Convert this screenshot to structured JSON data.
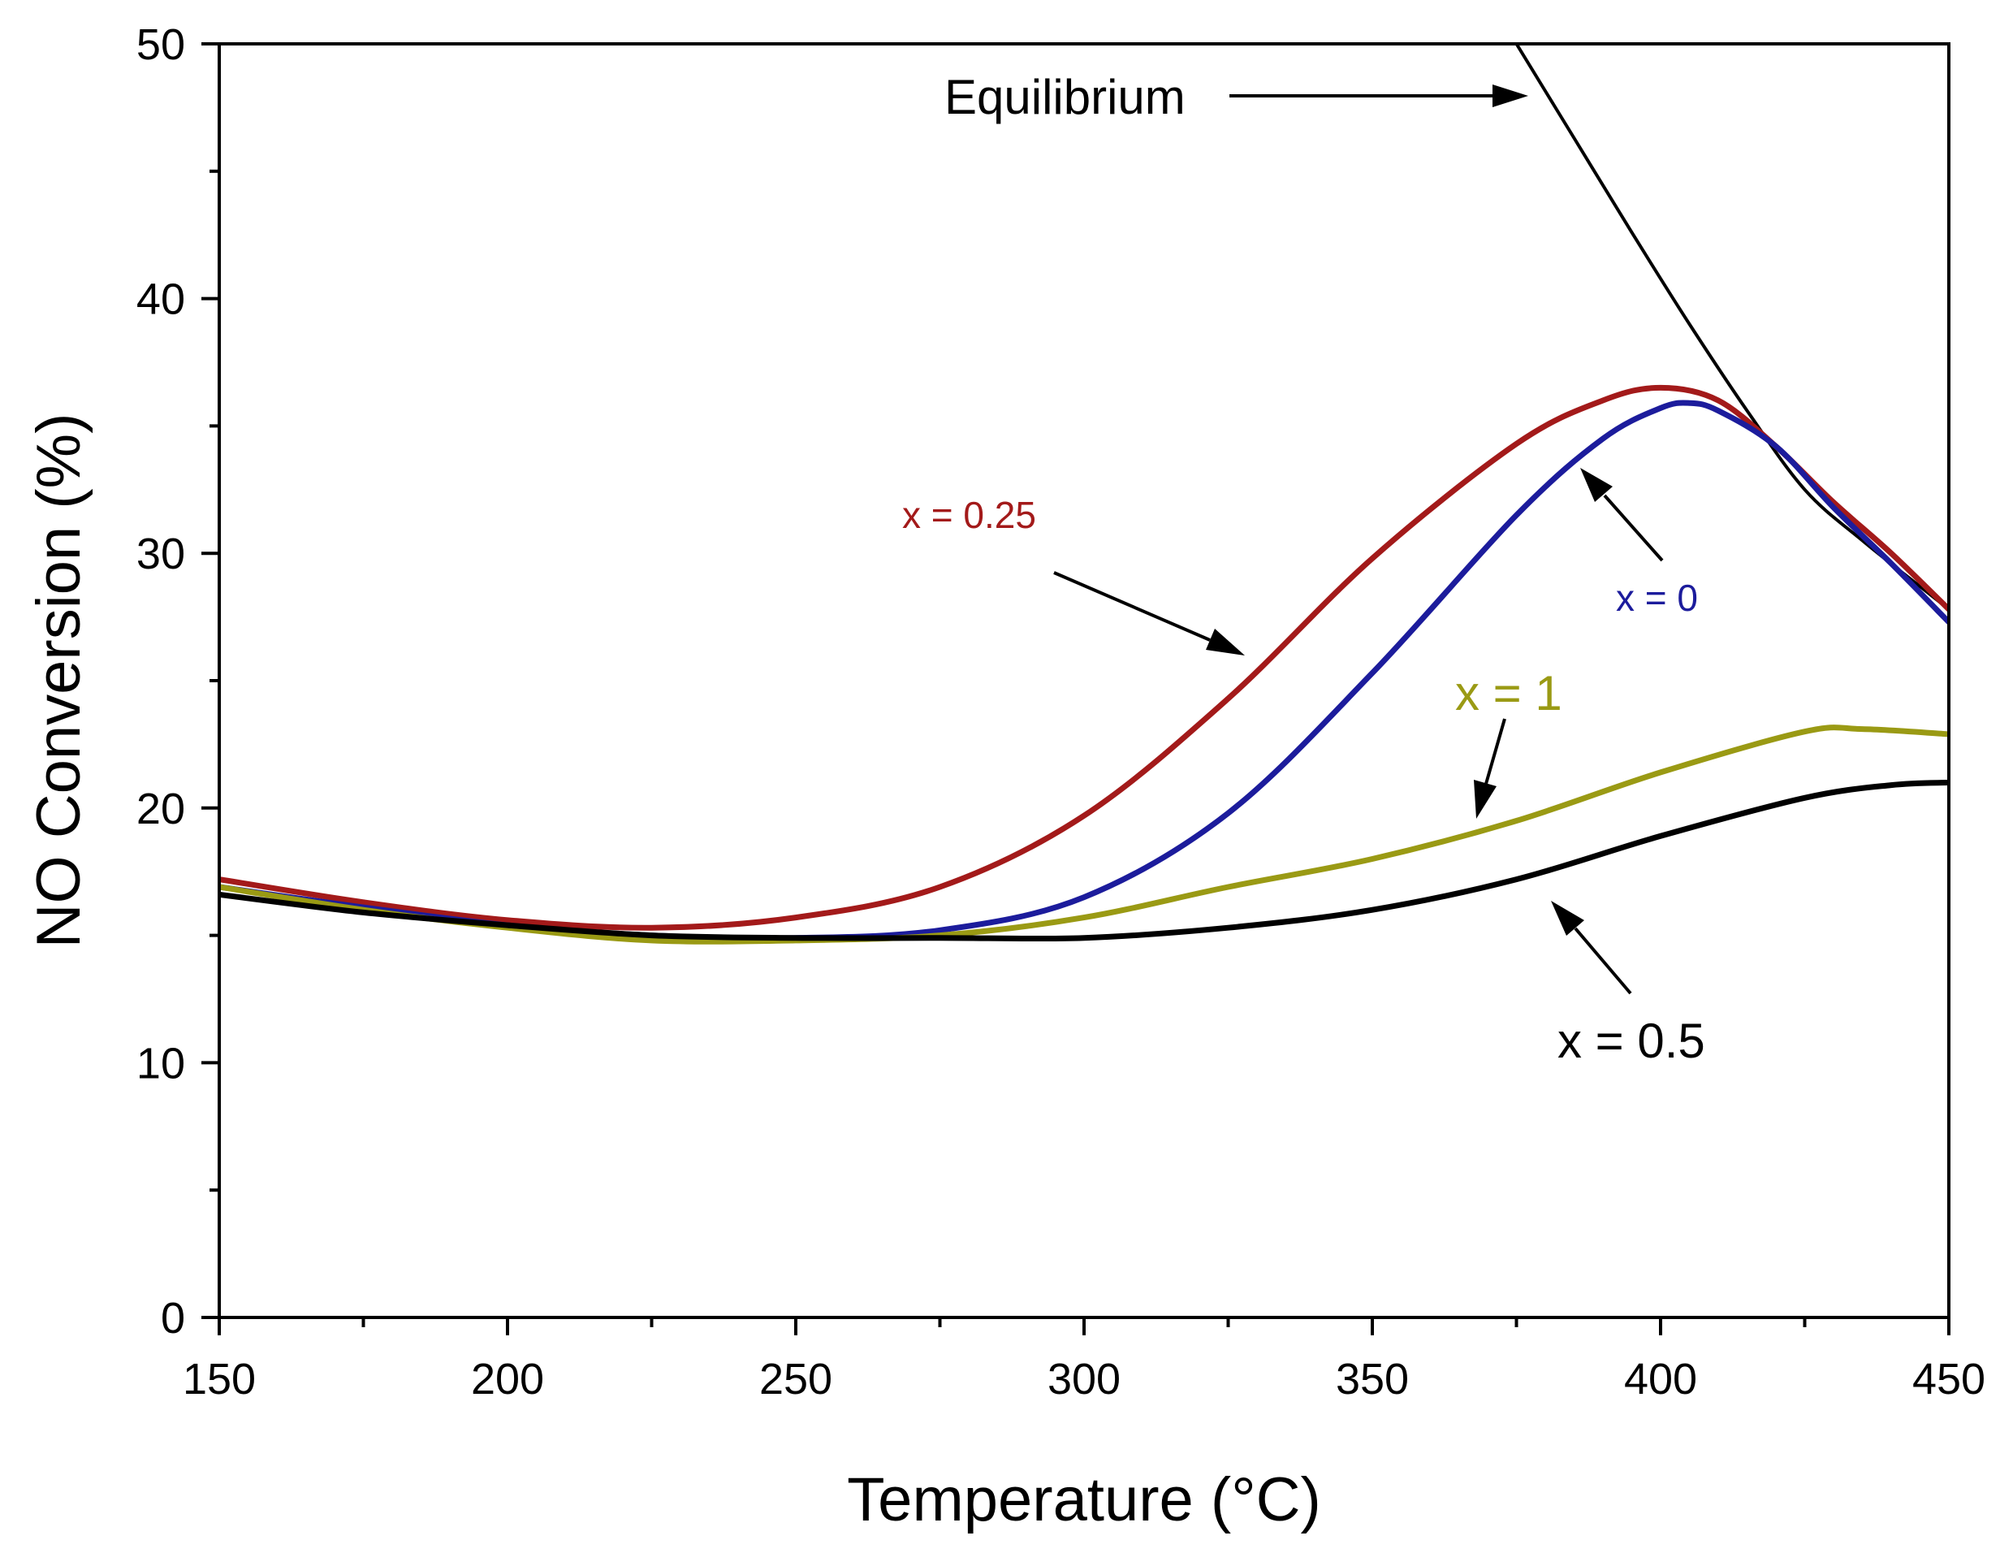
{
  "chart_data": {
    "type": "line",
    "title": "",
    "xlabel": "Temperature (°C)",
    "ylabel": "NO Conversion (%)",
    "xlim": [
      150,
      450
    ],
    "ylim": [
      0,
      50
    ],
    "xticks": [
      150,
      200,
      250,
      300,
      350,
      400,
      450
    ],
    "yticks": [
      0,
      10,
      20,
      30,
      40,
      50
    ],
    "xtick_labels": [
      "150",
      "200",
      "250",
      "300",
      "350",
      "400",
      "450"
    ],
    "ytick_labels": [
      "0",
      "10",
      "20",
      "30",
      "40",
      "50"
    ],
    "grid": false,
    "legend": "none (inline annotations)",
    "series": [
      {
        "name": "Equilibrium",
        "color": "#000000",
        "x": [
          375,
          385,
          395,
          405,
          415,
          425,
          435,
          445,
          450
        ],
        "y": [
          50.0,
          46.3,
          42.6,
          39.0,
          35.6,
          32.5,
          30.5,
          28.7,
          27.8
        ]
      },
      {
        "name": "x = 0.25",
        "color": "#a31a1a",
        "x": [
          150,
          175,
          200,
          225,
          250,
          275,
          300,
          325,
          350,
          375,
          390,
          400,
          410,
          420,
          430,
          440,
          450
        ],
        "y": [
          17.2,
          16.3,
          15.6,
          15.3,
          15.7,
          16.9,
          19.7,
          24.3,
          29.8,
          34.3,
          36.0,
          36.5,
          36.0,
          34.2,
          32.0,
          30.0,
          27.8
        ]
      },
      {
        "name": "x = 0",
        "color": "#1c1c9c",
        "x": [
          150,
          175,
          200,
          225,
          250,
          275,
          300,
          325,
          350,
          375,
          390,
          400,
          405,
          410,
          420,
          430,
          440,
          450
        ],
        "y": [
          16.9,
          16.1,
          15.4,
          15.0,
          14.9,
          15.2,
          16.5,
          19.8,
          25.3,
          31.5,
          34.5,
          35.7,
          35.9,
          35.6,
          34.2,
          31.8,
          29.6,
          27.3
        ]
      },
      {
        "name": "x = 1",
        "color": "#9a9a14",
        "x": [
          150,
          175,
          200,
          225,
          250,
          275,
          300,
          325,
          350,
          375,
          400,
          425,
          435,
          450
        ],
        "y": [
          16.9,
          16.0,
          15.3,
          14.8,
          14.8,
          15.0,
          15.7,
          16.9,
          18.0,
          19.5,
          21.4,
          23.0,
          23.1,
          22.9
        ]
      },
      {
        "name": "x = 0.5",
        "color": "#000000",
        "x": [
          150,
          175,
          200,
          225,
          250,
          275,
          300,
          325,
          350,
          375,
          400,
          425,
          440,
          450
        ],
        "y": [
          16.6,
          15.9,
          15.4,
          15.0,
          14.9,
          14.9,
          14.9,
          15.3,
          16.0,
          17.2,
          18.9,
          20.4,
          20.9,
          21.0
        ]
      }
    ],
    "annotations": [
      {
        "text": "Equilibrium",
        "color": "#000000"
      },
      {
        "text": "x = 0.25",
        "color": "#a31a1a"
      },
      {
        "text": "x = 0",
        "color": "#1c1c9c"
      },
      {
        "text": "x = 1",
        "color": "#9a9a14"
      },
      {
        "text": "x = 0.5",
        "color": "#000000"
      }
    ]
  }
}
